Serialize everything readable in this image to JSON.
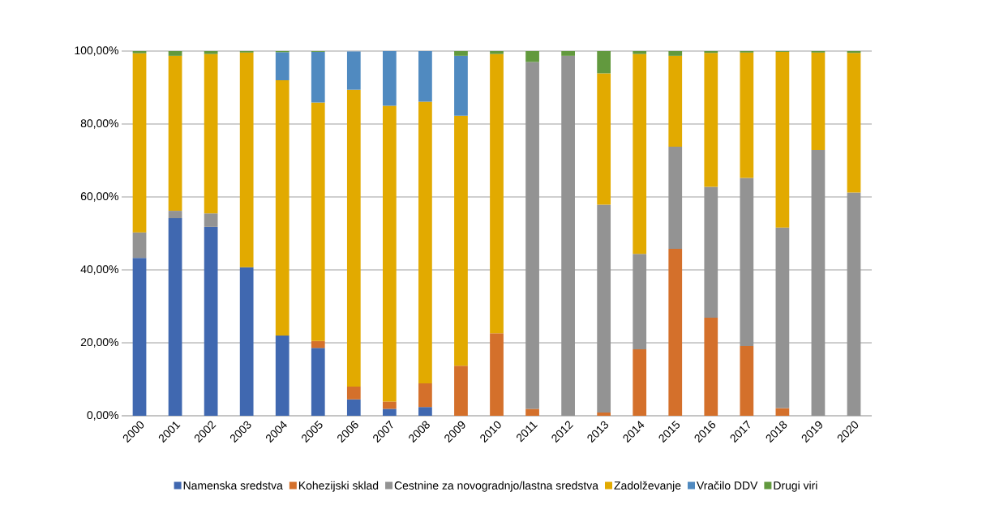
{
  "chart_data": {
    "type": "bar",
    "stacked": true,
    "categories": [
      "2000",
      "2001",
      "2002",
      "2003",
      "2004",
      "2005",
      "2006",
      "2007",
      "2008",
      "2009",
      "2010",
      "2011",
      "2012",
      "2013",
      "2014",
      "2015",
      "2016",
      "2017",
      "2018",
      "2019",
      "2020"
    ],
    "series": [
      {
        "name": "Namenska sredstva",
        "color": "#4068b0",
        "values": [
          43.3,
          54.2,
          51.8,
          40.7,
          22.0,
          18.6,
          4.5,
          1.9,
          2.4,
          null,
          null,
          null,
          null,
          null,
          null,
          null,
          null,
          null,
          null,
          null,
          null
        ]
      },
      {
        "name": "Kohezijski sklad",
        "color": "#d4702b",
        "values": [
          null,
          null,
          null,
          null,
          null,
          1.9,
          3.5,
          2.0,
          6.5,
          13.7,
          22.6,
          1.9,
          null,
          0.9,
          18.2,
          45.8,
          26.9,
          19.1,
          2.1,
          null,
          null
        ]
      },
      {
        "name": "Cestnine za novogradnjo/lastna sredstva",
        "color": "#939393",
        "values": [
          7.0,
          2.0,
          3.7,
          null,
          null,
          null,
          null,
          null,
          null,
          null,
          null,
          95.1,
          98.7,
          57.0,
          26.2,
          28.0,
          35.9,
          46.1,
          49.5,
          72.9,
          61.2
        ]
      },
      {
        "name": "Zadolževanje",
        "color": "#e2aa00",
        "values": [
          49.1,
          42.5,
          43.7,
          58.9,
          70.0,
          65.4,
          81.4,
          81.1,
          77.2,
          68.6,
          76.6,
          null,
          null,
          36.0,
          54.8,
          24.9,
          36.7,
          34.4,
          48.2,
          26.7,
          38.3
        ]
      },
      {
        "name": "Vračilo DDV",
        "color": "#508ac0",
        "values": [
          null,
          null,
          null,
          null,
          7.7,
          13.9,
          10.5,
          15.0,
          13.9,
          16.4,
          null,
          null,
          null,
          null,
          null,
          null,
          null,
          null,
          null,
          null,
          null
        ]
      },
      {
        "name": "Drugi viri",
        "color": "#62993e",
        "values": [
          0.6,
          1.3,
          0.8,
          0.4,
          0.3,
          0.2,
          null,
          null,
          null,
          1.3,
          0.8,
          3.0,
          1.3,
          6.1,
          0.8,
          1.3,
          0.5,
          0.4,
          0.2,
          0.4,
          0.5
        ]
      }
    ],
    "ylim": [
      0,
      100
    ],
    "yticks": [
      {
        "value": 0,
        "label": "0,00%"
      },
      {
        "value": 20,
        "label": "20,00%"
      },
      {
        "value": 40,
        "label": "40,00%"
      },
      {
        "value": 60,
        "label": "60,00%"
      },
      {
        "value": 80,
        "label": "80,00%"
      },
      {
        "value": 100,
        "label": "100,00%"
      }
    ],
    "grid": "y",
    "legend": "bottom"
  }
}
